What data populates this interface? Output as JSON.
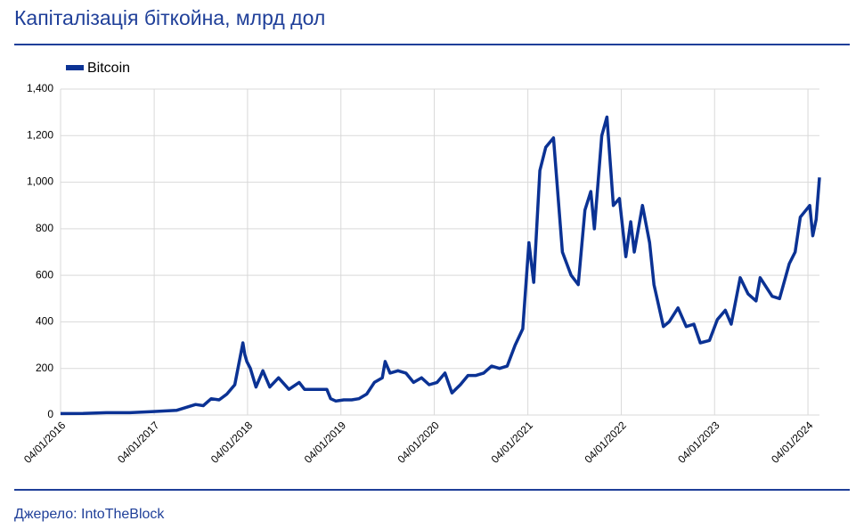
{
  "chart_data": {
    "type": "line",
    "title": "Капіталізація біткойна, млрд дол",
    "source": "Джерело: IntoTheBlock",
    "x": [
      "2016-01-04",
      "2016-04-01",
      "2016-07-01",
      "2016-10-01",
      "2017-01-01",
      "2017-04-01",
      "2017-05-15",
      "2017-06-15",
      "2017-07-15",
      "2017-08-15",
      "2017-09-15",
      "2017-10-15",
      "2017-11-15",
      "2017-12-17",
      "2017-12-24",
      "2018-01-01",
      "2018-01-15",
      "2018-02-06",
      "2018-03-05",
      "2018-04-01",
      "2018-05-05",
      "2018-06-15",
      "2018-07-25",
      "2018-08-15",
      "2018-09-15",
      "2018-10-15",
      "2018-11-10",
      "2018-11-25",
      "2018-12-15",
      "2019-01-15",
      "2019-02-15",
      "2019-03-15",
      "2019-04-15",
      "2019-05-15",
      "2019-06-15",
      "2019-06-26",
      "2019-07-15",
      "2019-08-15",
      "2019-09-15",
      "2019-10-15",
      "2019-11-15",
      "2019-12-15",
      "2020-01-15",
      "2020-02-15",
      "2020-03-13",
      "2020-04-15",
      "2020-05-15",
      "2020-06-15",
      "2020-07-15",
      "2020-08-15",
      "2020-09-15",
      "2020-10-15",
      "2020-11-15",
      "2020-12-15",
      "2021-01-08",
      "2021-01-27",
      "2021-02-20",
      "2021-03-15",
      "2021-04-14",
      "2021-05-19",
      "2021-06-22",
      "2021-07-20",
      "2021-08-15",
      "2021-09-07",
      "2021-09-21",
      "2021-10-20",
      "2021-11-09",
      "2021-12-04",
      "2021-12-28",
      "2022-01-22",
      "2022-02-10",
      "2022-02-24",
      "2022-03-28",
      "2022-04-25",
      "2022-05-12",
      "2022-06-18",
      "2022-07-10",
      "2022-08-14",
      "2022-09-15",
      "2022-10-15",
      "2022-11-09",
      "2022-12-15",
      "2023-01-15",
      "2023-02-15",
      "2023-03-10",
      "2023-04-14",
      "2023-05-15",
      "2023-06-15",
      "2023-07-01",
      "2023-08-17",
      "2023-09-15",
      "2023-10-23",
      "2023-11-15",
      "2023-12-05",
      "2024-01-11",
      "2024-01-23",
      "2024-02-05",
      "2024-02-18"
    ],
    "series": [
      {
        "name": "Bitcoin",
        "color": "#0b3294",
        "values": [
          6,
          7,
          10,
          10,
          15,
          20,
          35,
          45,
          40,
          70,
          65,
          90,
          130,
          310,
          260,
          230,
          200,
          120,
          190,
          120,
          160,
          110,
          140,
          110,
          110,
          110,
          110,
          70,
          60,
          65,
          65,
          70,
          90,
          140,
          160,
          230,
          180,
          190,
          180,
          140,
          160,
          130,
          140,
          180,
          95,
          130,
          170,
          170,
          180,
          210,
          200,
          210,
          300,
          370,
          740,
          570,
          1050,
          1150,
          1190,
          700,
          600,
          560,
          880,
          960,
          800,
          1200,
          1280,
          900,
          930,
          680,
          830,
          700,
          900,
          740,
          560,
          380,
          400,
          460,
          380,
          390,
          310,
          320,
          410,
          450,
          390,
          590,
          520,
          490,
          590,
          510,
          500,
          650,
          700,
          850,
          900,
          770,
          840,
          1020
        ]
      }
    ],
    "xlim": [
      "2016-01-04",
      "2024-02-18"
    ],
    "xticks": [
      {
        "value": "2016-01-04",
        "label": "04/01/2016"
      },
      {
        "value": "2017-01-04",
        "label": "04/01/2017"
      },
      {
        "value": "2018-01-04",
        "label": "04/01/2018"
      },
      {
        "value": "2019-01-04",
        "label": "04/01/2019"
      },
      {
        "value": "2020-01-04",
        "label": "04/01/2020"
      },
      {
        "value": "2021-01-04",
        "label": "04/01/2021"
      },
      {
        "value": "2022-01-04",
        "label": "04/01/2022"
      },
      {
        "value": "2023-01-04",
        "label": "04/01/2023"
      },
      {
        "value": "2024-01-04",
        "label": "04/01/2024"
      }
    ],
    "ylim": [
      0,
      1400
    ],
    "yticks": [
      0,
      200,
      400,
      600,
      800,
      {
        "value": 1000,
        "label": "1,000"
      },
      {
        "value": 1200,
        "label": "1,200"
      },
      {
        "value": 1400,
        "label": "1,400"
      }
    ],
    "grid": true,
    "legend": "top-left"
  }
}
